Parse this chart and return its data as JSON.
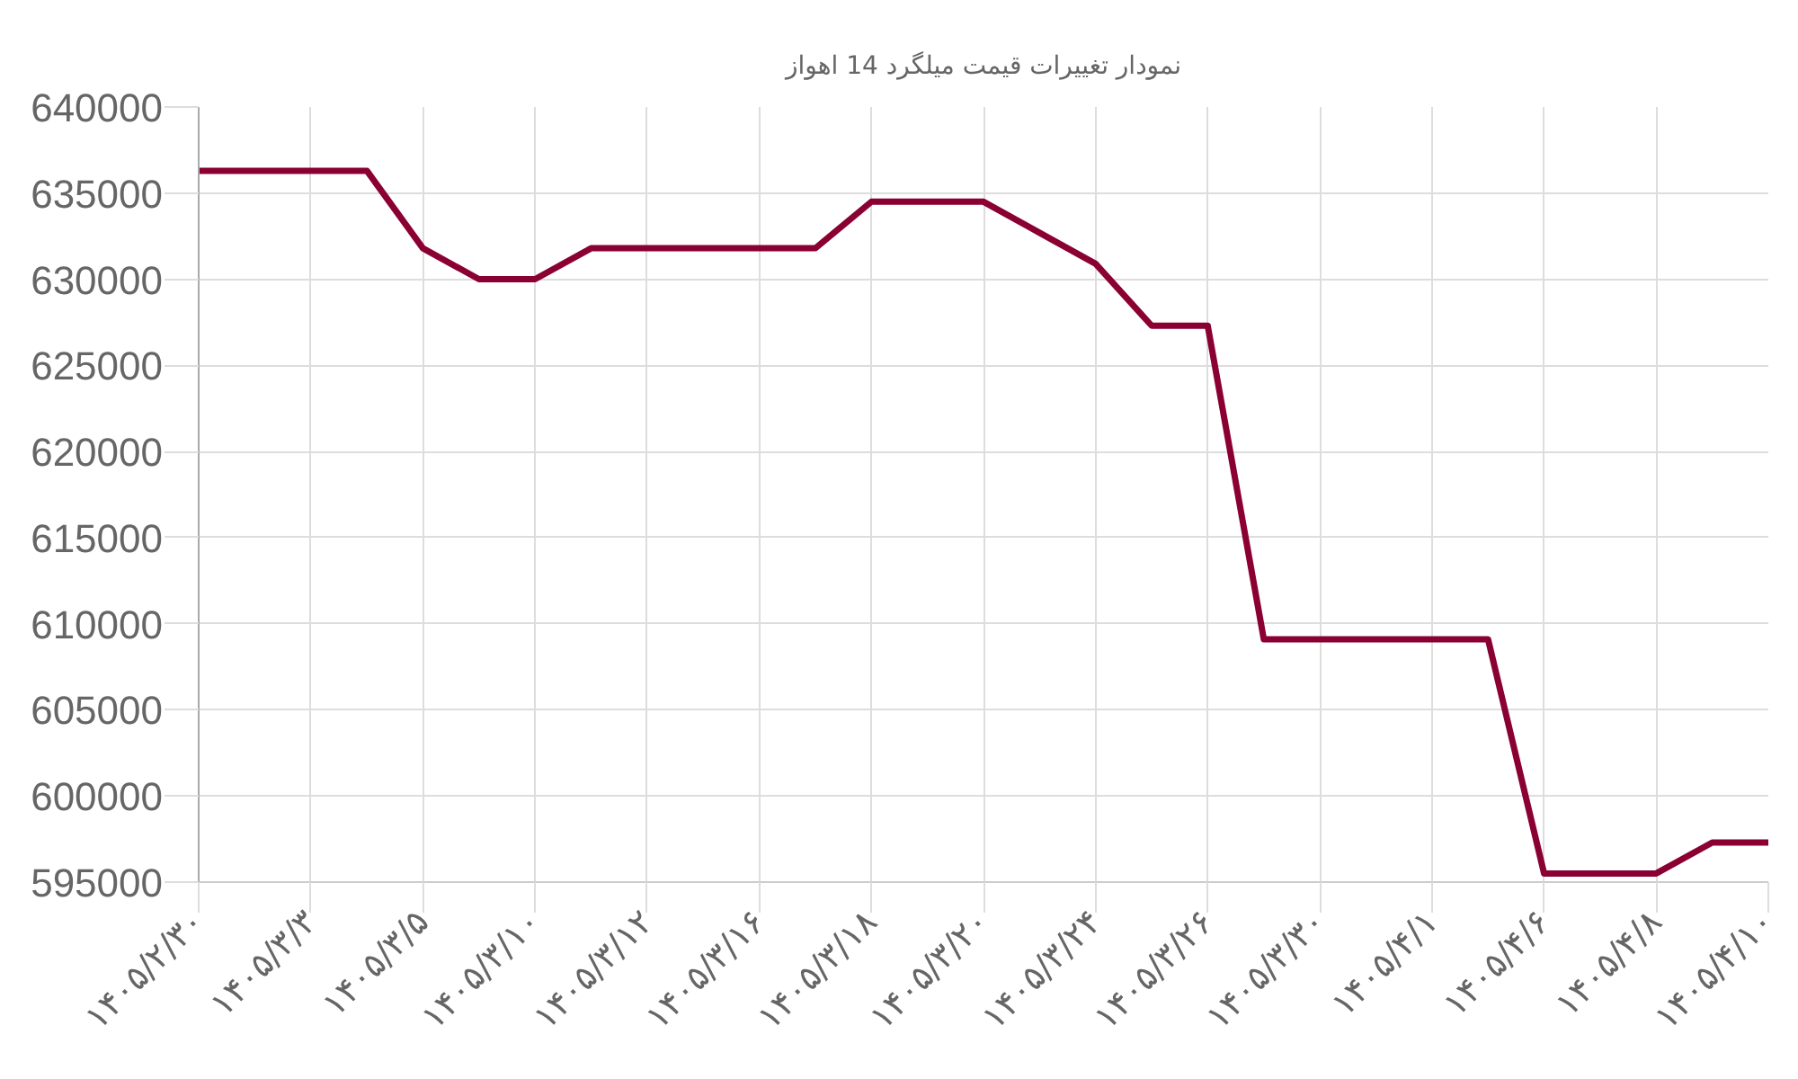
{
  "chart_data": {
    "type": "line",
    "title": "نمودار تغییرات قیمت میلگرد 14 اهواز",
    "categories": [
      "۱۴۰۵/۲/۳۰",
      null,
      "۱۴۰۵/۳/۳",
      null,
      "۱۴۰۵/۳/۵",
      null,
      "۱۴۰۵/۳/۱۰",
      null,
      "۱۴۰۵/۳/۱۲",
      null,
      "۱۴۰۵/۳/۱۶",
      null,
      "۱۴۰۵/۳/۱۸",
      null,
      "۱۴۰۵/۳/۲۰",
      null,
      "۱۴۰۵/۳/۲۴",
      null,
      "۱۴۰۵/۳/۲۶",
      null,
      "۱۴۰۵/۳/۳۰",
      null,
      "۱۴۰۵/۴/۱",
      null,
      "۱۴۰۵/۴/۶",
      null,
      "۱۴۰۵/۴/۸",
      null,
      "۱۴۰۵/۴/۱۰"
    ],
    "series": [
      {
        "color": "#8b0032",
        "values": [
          636300,
          636300,
          636300,
          636300,
          631800,
          630000,
          630000,
          631800,
          631800,
          631800,
          631800,
          631800,
          634500,
          634500,
          634500,
          632700,
          630900,
          627300,
          627300,
          609100,
          609100,
          609100,
          609100,
          609100,
          595500,
          595500,
          595500,
          597300,
          597300
        ]
      }
    ],
    "ylim": [
      595000,
      640000
    ],
    "yticks": [
      595000,
      600000,
      605000,
      610000,
      615000,
      620000,
      625000,
      630000,
      635000,
      640000
    ],
    "grid": true
  }
}
